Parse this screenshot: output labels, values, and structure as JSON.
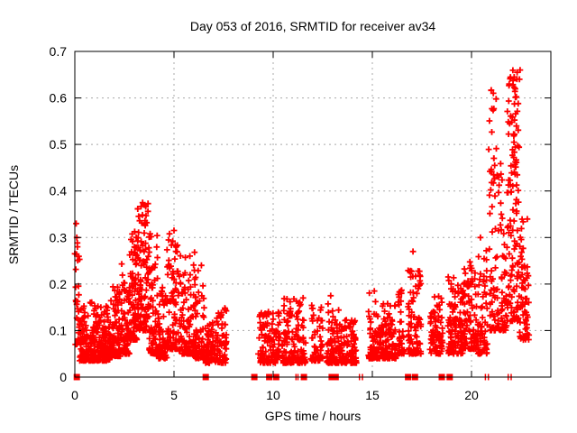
{
  "window": {
    "background": "#ffffff"
  },
  "chart_data": {
    "type": "scatter",
    "title": "Day 053 of 2016, SRMTID for receiver av34",
    "xlabel": "GPS time / hours",
    "ylabel": "SRMTID / TECUs",
    "xlim": [
      0,
      24
    ],
    "ylim": [
      0,
      0.7
    ],
    "xticks": [
      0,
      5,
      10,
      15,
      20
    ],
    "yticks": [
      0,
      0.1,
      0.2,
      0.3,
      0.4,
      0.5,
      0.6,
      0.7
    ],
    "grid": true,
    "legend_position": "none",
    "colors": {
      "points": "#ff0000",
      "grid": "#a8a8a8",
      "axis": "#000000",
      "text": "#000000"
    },
    "seed": 20160053,
    "series": [
      {
        "name": "SRMTID",
        "marker": "plus",
        "clusters": [
          {
            "x0": 0.03,
            "x1": 0.25,
            "n": 26,
            "ymin": 0.07,
            "ymax": 0.3,
            "tail": 1.6
          },
          {
            "x0": 0.25,
            "x1": 1.1,
            "n": 150,
            "ymin": 0.035,
            "ymax": 0.165,
            "tail": 2.0
          },
          {
            "x0": 1.1,
            "x1": 1.8,
            "n": 130,
            "ymin": 0.035,
            "ymax": 0.155,
            "tail": 2.0
          },
          {
            "x0": 1.8,
            "x1": 2.3,
            "n": 90,
            "ymin": 0.045,
            "ymax": 0.2,
            "tail": 2.4
          },
          {
            "x0": 2.33,
            "x1": 2.45,
            "n": 15,
            "ymin": 0.08,
            "ymax": 0.25,
            "tail": 1.4
          },
          {
            "x0": 2.45,
            "x1": 2.75,
            "n": 55,
            "ymin": 0.05,
            "ymax": 0.205,
            "tail": 2.0
          },
          {
            "x0": 2.75,
            "x1": 3.15,
            "n": 85,
            "ymin": 0.08,
            "ymax": 0.32,
            "tail": 1.6
          },
          {
            "x0": 3.15,
            "x1": 3.75,
            "n": 110,
            "ymin": 0.1,
            "ymax": 0.375,
            "tail": 1.5
          },
          {
            "x0": 3.75,
            "x1": 4.2,
            "n": 80,
            "ymin": 0.05,
            "ymax": 0.31,
            "tail": 2.4
          },
          {
            "x0": 4.2,
            "x1": 4.65,
            "n": 70,
            "ymin": 0.04,
            "ymax": 0.195,
            "tail": 2.0
          },
          {
            "x0": 4.65,
            "x1": 5.25,
            "n": 90,
            "ymin": 0.06,
            "ymax": 0.31,
            "tail": 2.1
          },
          {
            "x0": 5.25,
            "x1": 6.05,
            "n": 110,
            "ymin": 0.05,
            "ymax": 0.28,
            "tail": 2.3
          },
          {
            "x0": 6.05,
            "x1": 6.55,
            "n": 70,
            "ymin": 0.04,
            "ymax": 0.24,
            "tail": 2.5
          },
          {
            "x0": 6.55,
            "x1": 7.1,
            "n": 60,
            "ymin": 0.03,
            "ymax": 0.12,
            "tail": 1.8
          },
          {
            "x0": 7.1,
            "x1": 7.65,
            "n": 70,
            "ymin": 0.03,
            "ymax": 0.15,
            "tail": 1.9
          },
          {
            "x0": 9.25,
            "x1": 10.35,
            "n": 115,
            "ymin": 0.03,
            "ymax": 0.145,
            "tail": 1.9
          },
          {
            "x0": 10.45,
            "x1": 11.65,
            "n": 140,
            "ymin": 0.03,
            "ymax": 0.17,
            "tail": 2.0
          },
          {
            "x0": 11.9,
            "x1": 12.5,
            "n": 55,
            "ymin": 0.035,
            "ymax": 0.155,
            "tail": 2.2
          },
          {
            "x0": 12.7,
            "x1": 13.3,
            "n": 85,
            "ymin": 0.03,
            "ymax": 0.16,
            "tail": 2.2
          },
          {
            "x0": 13.35,
            "x1": 14.2,
            "n": 100,
            "ymin": 0.03,
            "ymax": 0.125,
            "tail": 1.9
          },
          {
            "x0": 14.8,
            "x1": 15.4,
            "n": 75,
            "ymin": 0.04,
            "ymax": 0.185,
            "tail": 2.2
          },
          {
            "x0": 15.4,
            "x1": 16.2,
            "n": 110,
            "ymin": 0.04,
            "ymax": 0.16,
            "tail": 2.0
          },
          {
            "x0": 16.3,
            "x1": 16.6,
            "n": 40,
            "ymin": 0.05,
            "ymax": 0.19,
            "tail": 1.8
          },
          {
            "x0": 16.8,
            "x1": 17.45,
            "n": 90,
            "ymin": 0.05,
            "ymax": 0.24,
            "tail": 2.2
          },
          {
            "x0": 17.9,
            "x1": 18.55,
            "n": 80,
            "ymin": 0.05,
            "ymax": 0.18,
            "tail": 2.0
          },
          {
            "x0": 18.8,
            "x1": 19.55,
            "n": 110,
            "ymin": 0.05,
            "ymax": 0.22,
            "tail": 2.0
          },
          {
            "x0": 19.55,
            "x1": 20.3,
            "n": 100,
            "ymin": 0.06,
            "ymax": 0.25,
            "tail": 2.0
          },
          {
            "x0": 20.3,
            "x1": 20.8,
            "n": 65,
            "ymin": 0.05,
            "ymax": 0.28,
            "tail": 2.0
          },
          {
            "x0": 20.85,
            "x1": 21.35,
            "n": 70,
            "ymin": 0.1,
            "ymax": 0.62,
            "tail": 2.4
          },
          {
            "x0": 21.35,
            "x1": 21.8,
            "n": 60,
            "ymin": 0.1,
            "ymax": 0.47,
            "tail": 2.0
          },
          {
            "x0": 21.8,
            "x1": 22.4,
            "n": 130,
            "ymin": 0.12,
            "ymax": 0.66,
            "tail": 1.6
          },
          {
            "x0": 22.4,
            "x1": 22.9,
            "n": 65,
            "ymin": 0.08,
            "ymax": 0.35,
            "tail": 1.7
          }
        ],
        "outliers": [
          [
            0.0,
            0.265
          ],
          [
            0.07,
            0.33
          ],
          [
            0.1,
            0.3
          ],
          [
            0.13,
            0.28
          ],
          [
            3.42,
            0.375
          ],
          [
            3.5,
            0.37
          ],
          [
            5.0,
            0.315
          ],
          [
            6.38,
            0.24
          ],
          [
            12.9,
            0.175
          ],
          [
            15.1,
            0.185
          ],
          [
            17.05,
            0.27
          ],
          [
            20.45,
            0.3
          ],
          [
            21.1,
            0.61
          ],
          [
            21.9,
            0.63
          ],
          [
            22.15,
            0.645
          ],
          [
            22.3,
            0.655
          ],
          [
            22.42,
            0.64
          ],
          [
            22.45,
            0.66
          ]
        ]
      },
      {
        "name": "zero-value square markers",
        "marker": "filled-square",
        "y": 0,
        "x": [
          0.1,
          6.6,
          9.05,
          9.8,
          10.15,
          11.55,
          12.95,
          13.15,
          16.8,
          17.15,
          18.5,
          18.9
        ]
      },
      {
        "name": "zero-value thin markers",
        "marker": "thin-plus",
        "y": 0,
        "x": [
          11.15,
          11.25,
          14.35,
          14.5,
          20.7,
          20.85,
          21.85,
          22.0
        ]
      }
    ]
  }
}
